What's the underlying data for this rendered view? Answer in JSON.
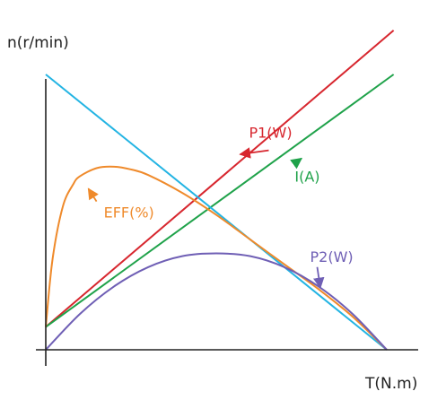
{
  "chart_data": {
    "type": "line",
    "title": "",
    "xlabel": "T(N.m)",
    "ylabel": "n(r/min)",
    "xlim": [
      0,
      1
    ],
    "ylim": [
      0,
      1
    ],
    "grid": false,
    "legend": "none",
    "series": [
      {
        "name": "P1(W)",
        "color": "#d7262e",
        "x": [
          0,
          1.02
        ],
        "y": [
          0.083,
          1.16
        ]
      },
      {
        "name": "I(A)",
        "color": "#1fa24a",
        "x": [
          0,
          1.02
        ],
        "y": [
          0.083,
          1.0
        ]
      },
      {
        "name": "",
        "color": "#23b4e3",
        "x": [
          0,
          1.0
        ],
        "y": [
          1.0,
          0.0
        ]
      },
      {
        "name": "EFF(%)",
        "color": "#ef8a2b",
        "x": [
          0,
          0.02,
          0.05,
          0.08,
          0.1,
          0.15,
          0.2,
          0.25,
          0.3,
          0.4,
          0.5,
          0.6,
          0.7,
          0.8,
          0.9,
          1.0
        ],
        "y": [
          0.083,
          0.33,
          0.52,
          0.6,
          0.63,
          0.66,
          0.665,
          0.655,
          0.635,
          0.57,
          0.49,
          0.4,
          0.31,
          0.22,
          0.12,
          0.0
        ]
      },
      {
        "name": "P2(W)",
        "color": "#6f5fb5",
        "x": [
          0,
          0.1,
          0.2,
          0.3,
          0.4,
          0.5,
          0.6,
          0.7,
          0.8,
          0.9,
          1.0
        ],
        "y": [
          0.0,
          0.13,
          0.23,
          0.3,
          0.34,
          0.35,
          0.34,
          0.3,
          0.23,
          0.13,
          0.0
        ]
      }
    ],
    "annotations": [
      {
        "text": "P1(W)",
        "series": "P1(W)",
        "anchor": [
          0.596,
          0.77
        ],
        "arrow_tip": [
          0.57,
          0.71
        ]
      },
      {
        "text": "I(A)",
        "series": "I(A)",
        "anchor": [
          0.73,
          0.61
        ],
        "arrow_tip": [
          0.75,
          0.695
        ]
      },
      {
        "text": "EFF(%)",
        "series": "EFF(%)",
        "anchor": [
          0.17,
          0.48
        ],
        "arrow_tip": [
          0.125,
          0.585
        ]
      },
      {
        "text": "P2(W)",
        "series": "P2(W)",
        "anchor": [
          0.775,
          0.32
        ],
        "arrow_tip": [
          0.805,
          0.225
        ]
      }
    ]
  }
}
